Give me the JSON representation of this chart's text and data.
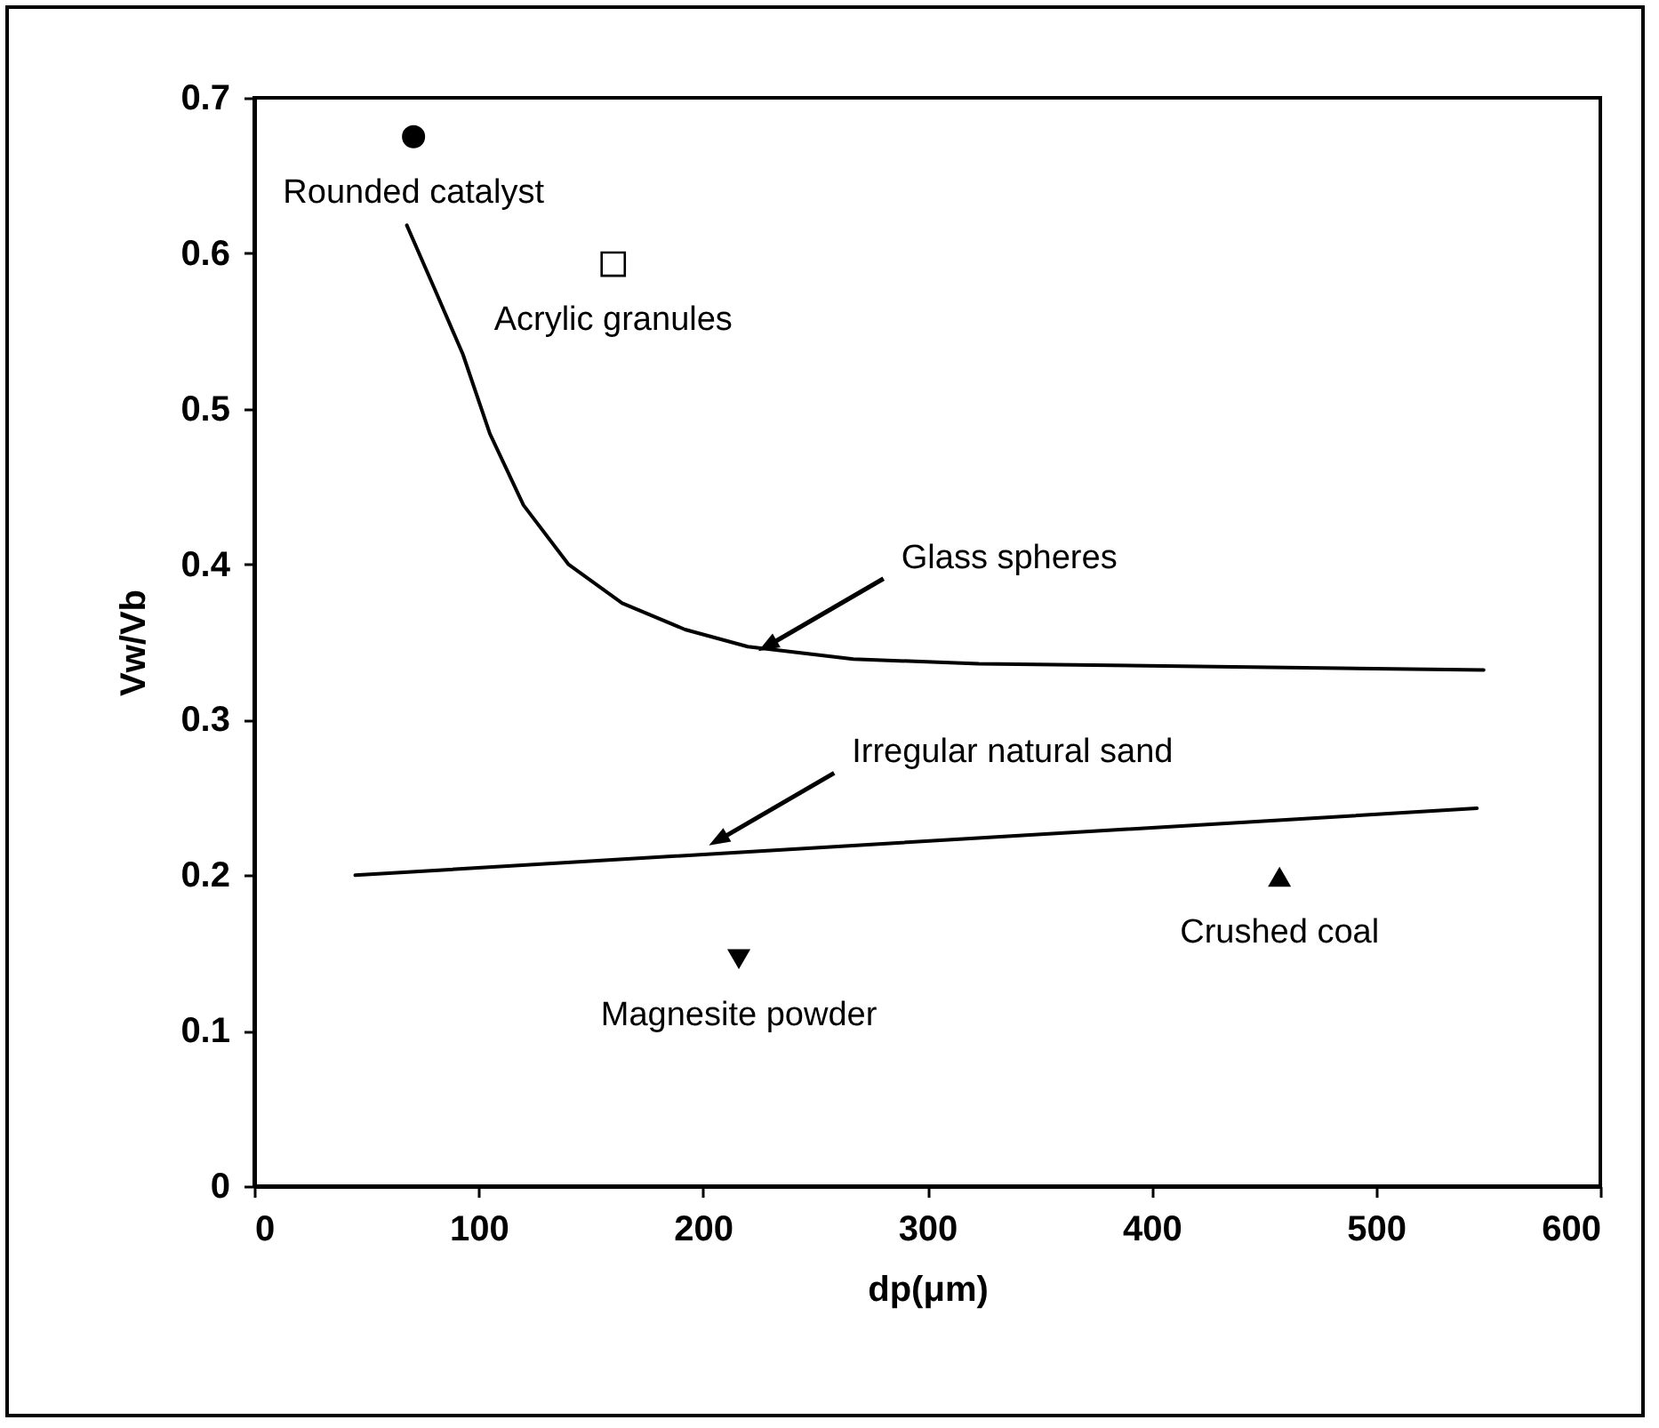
{
  "chart_data": {
    "type": "line",
    "xlabel": "dp(μm)",
    "ylabel": "Vw/Vb",
    "xlim": [
      0,
      600
    ],
    "xticks": [
      0,
      100,
      200,
      300,
      400,
      500,
      600
    ],
    "ylim": [
      0,
      0.7
    ],
    "yticks": [
      0,
      0.1,
      0.2,
      0.3,
      0.4,
      0.5,
      0.6,
      0.7
    ],
    "grid": false,
    "legend": false,
    "series": [
      {
        "color": "#000000",
        "x": [
          68,
          81,
          93,
          105,
          120,
          140,
          164,
          192,
          220,
          267,
          323,
          548
        ],
        "values": [
          0.618,
          0.575,
          0.535,
          0.484,
          0.438,
          0.4,
          0.375,
          0.358,
          0.347,
          0.339,
          0.336,
          0.332
        ]
      },
      {
        "color": "#000000",
        "x": [
          45,
          545
        ],
        "values": [
          0.2,
          0.243
        ]
      },
      {
        "type": "scatter",
        "name": "Rounded catalyst",
        "marker": "circle",
        "color": "#000000",
        "x": [
          71
        ],
        "values": [
          0.675
        ]
      },
      {
        "type": "scatter",
        "name": "Acrylic granules",
        "marker": "square",
        "color": "#000000",
        "x": [
          160
        ],
        "values": [
          0.593
        ]
      },
      {
        "type": "scatter",
        "name": "Crushed coal",
        "marker": "triangle",
        "color": "#000000",
        "x": [
          457
        ],
        "values": [
          0.199
        ]
      },
      {
        "type": "scatter",
        "name": "Magnesite powder",
        "marker": "triangle-down",
        "color": "#000000",
        "x": [
          216
        ],
        "values": [
          0.146
        ]
      }
    ],
    "annotations": [
      {
        "text": "Glass spheres",
        "x": 225,
        "y": 0.345
      },
      {
        "text": "Irregular natural sand",
        "x": 203,
        "y": 0.22
      }
    ]
  }
}
